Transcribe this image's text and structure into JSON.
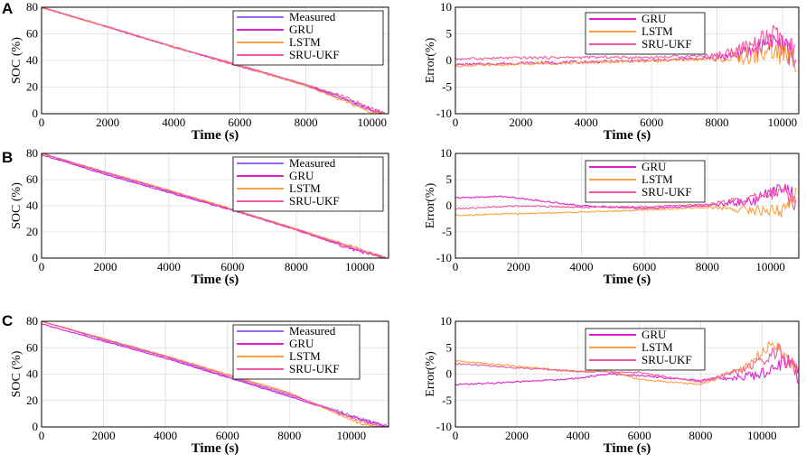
{
  "colors": {
    "measured": "#9966ff",
    "gru": "#e020d0",
    "lstm": "#ffa040",
    "sru_ukf": "#ef5a9e",
    "grid": "#dcdcdc"
  },
  "chart_data": [
    {
      "type": "line",
      "panel": "A",
      "title": "",
      "xlabel": "Time (s)",
      "ylabel": "SOC (%)",
      "xlim": [
        0,
        10500
      ],
      "ylim": [
        0,
        80
      ],
      "xticks": [
        0,
        2000,
        4000,
        6000,
        8000,
        10000
      ],
      "yticks": [
        0,
        20,
        40,
        60,
        80
      ],
      "legend": [
        "Measured",
        "GRU",
        "LSTM",
        "SRU-UKF"
      ],
      "series": [
        {
          "name": "Measured",
          "x": [
            0,
            2000,
            4000,
            6000,
            8000,
            9000,
            10000,
            10400
          ],
          "values": [
            80,
            65,
            50,
            36,
            21,
            12,
            2,
            0
          ]
        },
        {
          "name": "GRU",
          "x": [
            0,
            2000,
            4000,
            6000,
            8000,
            9000,
            10000,
            10400
          ],
          "values": [
            80,
            65,
            50,
            35.5,
            21.5,
            13,
            3,
            0
          ]
        },
        {
          "name": "LSTM",
          "x": [
            0,
            2000,
            4000,
            6000,
            8000,
            9000,
            10000,
            10400
          ],
          "values": [
            79.5,
            65,
            50.5,
            36,
            21,
            11,
            1,
            0
          ]
        },
        {
          "name": "SRU-UKF",
          "x": [
            0,
            2000,
            4000,
            6000,
            8000,
            9000,
            10000,
            10400
          ],
          "values": [
            80,
            65.5,
            50,
            36.5,
            22,
            14,
            4,
            0
          ]
        }
      ]
    },
    {
      "type": "line",
      "panel": "A-error",
      "title": "",
      "xlabel": "Time (s)",
      "ylabel": "Error(%)",
      "xlim": [
        0,
        10500
      ],
      "ylim": [
        -10,
        10
      ],
      "xticks": [
        0,
        2000,
        4000,
        6000,
        8000,
        10000
      ],
      "yticks": [
        -10,
        -5,
        0,
        5,
        10
      ],
      "legend": [
        "GRU",
        "LSTM",
        "SRU-UKF"
      ],
      "series": [
        {
          "name": "GRU",
          "x": [
            0,
            2000,
            4000,
            6000,
            8000,
            9000,
            9700,
            10400
          ],
          "values": [
            -0.8,
            -0.5,
            -0.3,
            0,
            0.5,
            1.5,
            4,
            0.5
          ]
        },
        {
          "name": "LSTM",
          "x": [
            0,
            2000,
            4000,
            6000,
            8000,
            9000,
            9700,
            10400
          ],
          "values": [
            -1,
            -0.7,
            -0.4,
            -0.1,
            0.3,
            0.5,
            2,
            0
          ]
        },
        {
          "name": "SRU-UKF",
          "x": [
            0,
            2000,
            4000,
            6000,
            8000,
            9000,
            9700,
            10400
          ],
          "values": [
            0.3,
            0.5,
            0.6,
            0.6,
            1,
            2.5,
            5,
            1
          ]
        }
      ]
    },
    {
      "type": "line",
      "panel": "B",
      "title": "",
      "xlabel": "Time (s)",
      "ylabel": "SOC (%)",
      "xlim": [
        0,
        10900
      ],
      "ylim": [
        0,
        80
      ],
      "xticks": [
        0,
        2000,
        4000,
        6000,
        8000,
        10000
      ],
      "yticks": [
        0,
        20,
        40,
        60,
        80
      ],
      "legend": [
        "Measured",
        "GRU",
        "LSTM",
        "SRU-UKF"
      ],
      "series": [
        {
          "name": "Measured",
          "x": [
            0,
            2000,
            4000,
            6000,
            8000,
            10000,
            10800
          ],
          "values": [
            80,
            65,
            51,
            37,
            22,
            6,
            0
          ]
        },
        {
          "name": "GRU",
          "x": [
            0,
            2000,
            4000,
            6000,
            8000,
            10000,
            10800
          ],
          "values": [
            79,
            64,
            50,
            36.5,
            21.5,
            5,
            0
          ]
        },
        {
          "name": "LSTM",
          "x": [
            0,
            2000,
            4000,
            6000,
            8000,
            10000,
            10800
          ],
          "values": [
            80,
            66,
            52,
            37.5,
            22.5,
            7,
            0
          ]
        },
        {
          "name": "SRU-UKF",
          "x": [
            0,
            2000,
            4000,
            6000,
            8000,
            10000,
            10800
          ],
          "values": [
            80,
            65.5,
            51.5,
            37,
            22,
            6,
            0
          ]
        }
      ]
    },
    {
      "type": "line",
      "panel": "B-error",
      "title": "",
      "xlabel": "Time (s)",
      "ylabel": "Error(%)",
      "xlim": [
        0,
        10900
      ],
      "ylim": [
        -10,
        10
      ],
      "xticks": [
        0,
        2000,
        4000,
        6000,
        8000,
        10000
      ],
      "yticks": [
        -10,
        -5,
        0,
        5,
        10
      ],
      "legend": [
        "GRU",
        "LSTM",
        "SRU-UKF"
      ],
      "series": [
        {
          "name": "GRU",
          "x": [
            0,
            1500,
            4000,
            6000,
            8000,
            9500,
            10400,
            10800
          ],
          "values": [
            1.5,
            1.8,
            0,
            -0.5,
            0,
            1,
            4,
            1.5
          ]
        },
        {
          "name": "LSTM",
          "x": [
            0,
            2000,
            4000,
            6000,
            8000,
            9500,
            10400,
            10800
          ],
          "values": [
            -1.8,
            -1.5,
            -1.2,
            -0.8,
            -0.3,
            -0.8,
            -1,
            2
          ]
        },
        {
          "name": "SRU-UKF",
          "x": [
            0,
            2000,
            4000,
            6000,
            8000,
            9500,
            10400,
            10800
          ],
          "values": [
            -0.6,
            0,
            -0.3,
            -0.2,
            0.3,
            1.5,
            3,
            0.5
          ]
        }
      ]
    },
    {
      "type": "line",
      "panel": "C",
      "title": "",
      "xlabel": "Time (s)",
      "ylabel": "SOC (%)",
      "xlim": [
        0,
        11200
      ],
      "ylim": [
        0,
        80
      ],
      "xticks": [
        0,
        2000,
        4000,
        6000,
        8000,
        10000
      ],
      "yticks": [
        0,
        20,
        40,
        60,
        80
      ],
      "legend": [
        "Measured",
        "GRU",
        "LSTM",
        "SRU-UKF"
      ],
      "series": [
        {
          "name": "Measured",
          "x": [
            0,
            2000,
            4000,
            6000,
            8000,
            10000,
            11200
          ],
          "values": [
            80,
            66,
            53,
            38,
            24,
            9,
            0
          ]
        },
        {
          "name": "GRU",
          "x": [
            0,
            2000,
            4000,
            6000,
            8000,
            10000,
            11200
          ],
          "values": [
            78,
            65,
            52,
            37.5,
            23,
            8,
            0
          ]
        },
        {
          "name": "LSTM",
          "x": [
            0,
            2000,
            4000,
            6000,
            8000,
            10000,
            10800
          ],
          "values": [
            80,
            67,
            54,
            40,
            26,
            5,
            0
          ]
        },
        {
          "name": "SRU-UKF",
          "x": [
            0,
            2000,
            4000,
            6000,
            8000,
            10000,
            11000
          ],
          "values": [
            80,
            66.5,
            53.5,
            39,
            25,
            7,
            0
          ]
        }
      ]
    },
    {
      "type": "line",
      "panel": "C-error",
      "title": "",
      "xlabel": "Time (s)",
      "ylabel": "Error(%)",
      "xlim": [
        0,
        11200
      ],
      "ylim": [
        -10,
        10
      ],
      "xticks": [
        0,
        2000,
        4000,
        6000,
        8000,
        10000
      ],
      "yticks": [
        -10,
        -5,
        0,
        5,
        10
      ],
      "legend": [
        "GRU",
        "LSTM",
        "SRU-UKF"
      ],
      "series": [
        {
          "name": "GRU",
          "x": [
            0,
            2000,
            4000,
            5000,
            6000,
            8000,
            10000,
            10900,
            11200
          ],
          "values": [
            -2,
            -1.5,
            -0.8,
            0,
            -0.3,
            -1.2,
            0,
            3,
            -1
          ]
        },
        {
          "name": "LSTM",
          "x": [
            0,
            2000,
            4000,
            5000,
            6000,
            8000,
            9500,
            10400,
            11200
          ],
          "values": [
            2.5,
            1.5,
            0.5,
            0.7,
            -1,
            -2,
            1.5,
            6,
            0
          ]
        },
        {
          "name": "SRU-UKF",
          "x": [
            0,
            2000,
            4000,
            6000,
            8000,
            9500,
            10600,
            11200
          ],
          "values": [
            2,
            1.2,
            0.5,
            0.3,
            -1.5,
            1,
            4.5,
            0
          ]
        }
      ]
    }
  ]
}
